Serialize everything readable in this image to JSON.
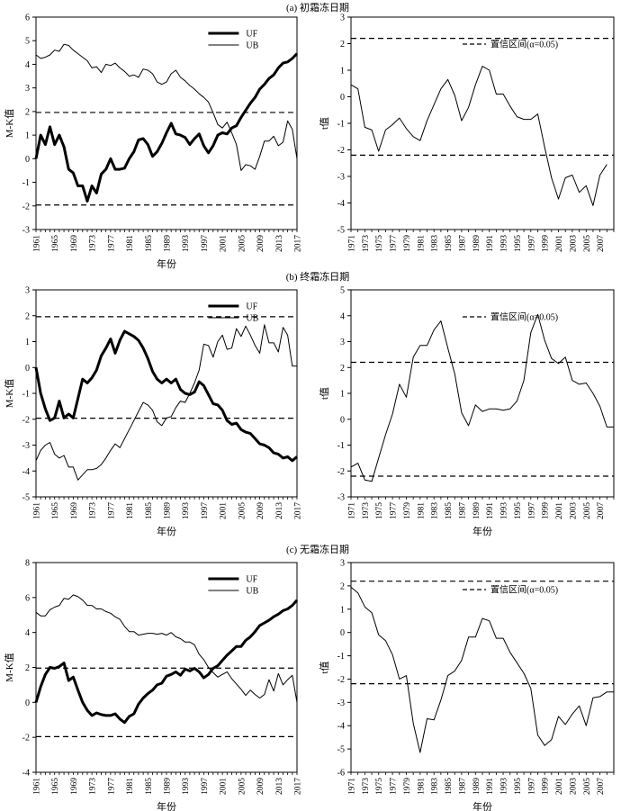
{
  "figure": {
    "background": "#ffffff",
    "ink": "#000000"
  },
  "chart_data": [
    {
      "id": "a-mk",
      "panel": "a",
      "type": "line",
      "title": "(a) 初霜冻日期",
      "xlabel": "年份",
      "ylabel": "M-K值",
      "xlim": [
        1961,
        2017
      ],
      "ylim": [
        -3,
        6
      ],
      "xticks": [
        1961,
        1965,
        1969,
        1973,
        1977,
        1981,
        1985,
        1989,
        1993,
        1997,
        2001,
        2005,
        2009,
        2013,
        2017
      ],
      "yticks": [
        -3,
        -2,
        -1,
        0,
        1,
        2,
        3,
        4,
        5,
        6
      ],
      "grid": false,
      "legend": {
        "position": "top-center"
      },
      "hlines": [
        1.96,
        -1.96
      ],
      "x": [
        1961,
        1962,
        1963,
        1964,
        1965,
        1966,
        1967,
        1968,
        1969,
        1970,
        1971,
        1972,
        1973,
        1974,
        1975,
        1976,
        1977,
        1978,
        1979,
        1980,
        1981,
        1982,
        1983,
        1984,
        1985,
        1986,
        1987,
        1988,
        1989,
        1990,
        1991,
        1992,
        1993,
        1994,
        1995,
        1996,
        1997,
        1998,
        1999,
        2000,
        2001,
        2002,
        2003,
        2004,
        2005,
        2006,
        2007,
        2008,
        2009,
        2010,
        2011,
        2012,
        2013,
        2014,
        2015,
        2016,
        2017
      ],
      "series": [
        {
          "name": "UF",
          "style": "thick",
          "values": [
            0,
            1,
            0.6,
            1.35,
            0.6,
            1,
            0.5,
            -0.45,
            -0.6,
            -1.15,
            -1.15,
            -1.8,
            -1.15,
            -1.45,
            -0.65,
            -0.45,
            0,
            -0.45,
            -0.45,
            -0.4,
            0,
            0.3,
            0.8,
            0.85,
            0.6,
            0.1,
            0.3,
            0.65,
            1.1,
            1.5,
            1.05,
            1,
            0.9,
            0.6,
            0.85,
            1.05,
            0.55,
            0.25,
            0.55,
            1,
            1.1,
            1.05,
            1.3,
            1.4,
            1.75,
            2.05,
            2.35,
            2.6,
            2.95,
            3.15,
            3.4,
            3.55,
            3.85,
            4.05,
            4.1,
            4.25,
            4.45
          ]
        },
        {
          "name": "UB",
          "style": "thin",
          "values": [
            4.4,
            4.25,
            4.3,
            4.4,
            4.6,
            4.55,
            4.85,
            4.8,
            4.6,
            4.45,
            4.3,
            4.15,
            3.85,
            3.9,
            3.65,
            4,
            3.95,
            4.05,
            3.85,
            3.7,
            3.5,
            3.55,
            3.45,
            3.8,
            3.75,
            3.6,
            3.25,
            3.15,
            3.25,
            3.6,
            3.75,
            3.45,
            3.3,
            3.1,
            2.95,
            2.75,
            2.6,
            2.4,
            1.95,
            1.45,
            1.3,
            1.55,
            1.1,
            0.6,
            -0.5,
            -0.25,
            -0.3,
            -0.45,
            0.1,
            0.75,
            0.75,
            0.95,
            0.55,
            0.7,
            1.6,
            1.25,
            0
          ]
        }
      ]
    },
    {
      "id": "a-t",
      "panel": "a",
      "type": "line",
      "xlabel": "",
      "ylabel": "t值",
      "xlim": [
        1971,
        2009
      ],
      "ylim": [
        -5,
        3
      ],
      "xticks": [
        1971,
        1973,
        1975,
        1977,
        1979,
        1981,
        1983,
        1985,
        1987,
        1989,
        1991,
        1993,
        1995,
        1997,
        1999,
        2001,
        2003,
        2005,
        2007
      ],
      "yticks": [
        -5,
        -4,
        -3,
        -2,
        -1,
        0,
        1,
        2,
        3
      ],
      "grid": false,
      "legend": {
        "position": "top-right",
        "label": "置信区间(α=0.05)"
      },
      "hlines": [
        2.2,
        -2.2
      ],
      "x": [
        1971,
        1972,
        1973,
        1974,
        1975,
        1976,
        1977,
        1978,
        1979,
        1980,
        1981,
        1982,
        1983,
        1984,
        1985,
        1986,
        1987,
        1988,
        1989,
        1990,
        1991,
        1992,
        1993,
        1994,
        1995,
        1996,
        1997,
        1998,
        1999,
        2000,
        2001,
        2002,
        2003,
        2004,
        2005,
        2006,
        2007,
        2008
      ],
      "series": [
        {
          "name": "t",
          "style": "thin",
          "values": [
            0.45,
            0.3,
            -1.15,
            -1.25,
            -2.05,
            -1.25,
            -1.05,
            -0.8,
            -1.2,
            -1.5,
            -1.65,
            -0.9,
            -0.3,
            0.3,
            0.65,
            0.05,
            -0.9,
            -0.4,
            0.45,
            1.15,
            1,
            0.1,
            0.1,
            -0.35,
            -0.75,
            -0.85,
            -0.85,
            -0.65,
            -1.9,
            -3.05,
            -3.85,
            -3.05,
            -2.95,
            -3.6,
            -3.35,
            -4.1,
            -2.95,
            -2.55
          ]
        }
      ]
    },
    {
      "id": "b-mk",
      "panel": "b",
      "type": "line",
      "title": "(b) 终霜冻日期",
      "xlabel": "年份",
      "ylabel": "M-K值",
      "xlim": [
        1961,
        2017
      ],
      "ylim": [
        -5,
        3
      ],
      "xticks": [
        1961,
        1965,
        1969,
        1973,
        1977,
        1981,
        1985,
        1989,
        1993,
        1997,
        2001,
        2005,
        2009,
        2013,
        2017
      ],
      "yticks": [
        -5,
        -4,
        -3,
        -2,
        -1,
        0,
        1,
        2,
        3
      ],
      "grid": false,
      "legend": {
        "position": "top-center"
      },
      "hlines": [
        1.96,
        -1.96
      ],
      "x": [
        1961,
        1962,
        1963,
        1964,
        1965,
        1966,
        1967,
        1968,
        1969,
        1970,
        1971,
        1972,
        1973,
        1974,
        1975,
        1976,
        1977,
        1978,
        1979,
        1980,
        1981,
        1982,
        1983,
        1984,
        1985,
        1986,
        1987,
        1988,
        1989,
        1990,
        1991,
        1992,
        1993,
        1994,
        1995,
        1996,
        1997,
        1998,
        1999,
        2000,
        2001,
        2002,
        2003,
        2004,
        2005,
        2006,
        2007,
        2008,
        2009,
        2010,
        2011,
        2012,
        2013,
        2014,
        2015,
        2016,
        2017
      ],
      "series": [
        {
          "name": "UF",
          "style": "thick",
          "values": [
            0,
            -1,
            -1.6,
            -2.05,
            -1.95,
            -1.3,
            -1.95,
            -1.8,
            -1.95,
            -1.2,
            -0.45,
            -0.6,
            -0.4,
            -0.1,
            0.45,
            0.75,
            1.1,
            0.55,
            1.05,
            1.4,
            1.3,
            1.2,
            1.05,
            0.75,
            0.35,
            -0.15,
            -0.45,
            -0.6,
            -0.45,
            -0.6,
            -0.45,
            -0.85,
            -1,
            -1.05,
            -0.95,
            -0.55,
            -0.7,
            -1.05,
            -1.4,
            -1.45,
            -1.65,
            -2.05,
            -2.2,
            -2.15,
            -2.4,
            -2.5,
            -2.55,
            -2.75,
            -2.95,
            -3,
            -3.1,
            -3.3,
            -3.35,
            -3.5,
            -3.45,
            -3.6,
            -3.45
          ]
        },
        {
          "name": "UB",
          "style": "thin",
          "values": [
            -3.6,
            -3.2,
            -3,
            -2.9,
            -3.35,
            -3.5,
            -3.4,
            -3.85,
            -3.85,
            -4.35,
            -4.15,
            -3.95,
            -3.95,
            -3.9,
            -3.75,
            -3.5,
            -3.2,
            -2.95,
            -3.1,
            -2.75,
            -2.4,
            -2.05,
            -1.7,
            -1.35,
            -1.45,
            -1.65,
            -2.1,
            -2.25,
            -1.95,
            -1.9,
            -1.55,
            -1.3,
            -1.35,
            -1,
            -0.6,
            -0.1,
            0.9,
            0.85,
            0.4,
            1,
            1.25,
            0.7,
            0.75,
            1.5,
            1.2,
            1.6,
            1.25,
            0.85,
            0.55,
            1.65,
            0.95,
            0.95,
            0.6,
            1.55,
            1.25,
            0.05,
            0.05
          ]
        }
      ]
    },
    {
      "id": "b-t",
      "panel": "b",
      "type": "line",
      "xlabel": "年份",
      "ylabel": "t值",
      "xlim": [
        1971,
        2009
      ],
      "ylim": [
        -3,
        5
      ],
      "xticks": [
        1971,
        1973,
        1975,
        1977,
        1979,
        1981,
        1983,
        1985,
        1987,
        1989,
        1991,
        1993,
        1995,
        1997,
        1999,
        2001,
        2003,
        2005,
        2007
      ],
      "yticks": [
        -3,
        -2,
        -1,
        0,
        1,
        2,
        3,
        4,
        5
      ],
      "grid": false,
      "legend": {
        "position": "top-right",
        "label": "置信区间(α=0.05)"
      },
      "hlines": [
        2.2,
        -2.2
      ],
      "x": [
        1971,
        1972,
        1973,
        1974,
        1975,
        1976,
        1977,
        1978,
        1979,
        1980,
        1981,
        1982,
        1983,
        1984,
        1985,
        1986,
        1987,
        1988,
        1989,
        1990,
        1991,
        1992,
        1993,
        1994,
        1995,
        1996,
        1997,
        1998,
        1999,
        2000,
        2001,
        2002,
        2003,
        2004,
        2005,
        2006,
        2007,
        2008,
        2009
      ],
      "series": [
        {
          "name": "t",
          "style": "thin",
          "values": [
            -1.85,
            -1.7,
            -2.35,
            -2.4,
            -1.5,
            -0.6,
            0.2,
            1.35,
            0.85,
            2.4,
            2.85,
            2.85,
            3.45,
            3.8,
            2.75,
            1.75,
            0.25,
            -0.25,
            0.55,
            0.3,
            0.4,
            0.4,
            0.35,
            0.4,
            0.7,
            1.5,
            3.35,
            4.05,
            3.05,
            2.35,
            2.15,
            2.4,
            1.5,
            1.35,
            1.4,
            1,
            0.5,
            -0.3,
            -0.3
          ]
        }
      ]
    },
    {
      "id": "c-mk",
      "panel": "c",
      "type": "line",
      "title": "(c) 无霜冻日期",
      "xlabel": "年份",
      "ylabel": "M-K值",
      "xlim": [
        1961,
        2017
      ],
      "ylim": [
        -4,
        8
      ],
      "xticks": [
        1961,
        1965,
        1969,
        1973,
        1977,
        1981,
        1985,
        1989,
        1993,
        1997,
        2001,
        2005,
        2009,
        2013,
        2017
      ],
      "yticks": [
        -4,
        -2,
        0,
        2,
        4,
        6,
        8
      ],
      "grid": false,
      "legend": {
        "position": "top-center"
      },
      "hlines": [
        1.96,
        -1.96
      ],
      "x": [
        1961,
        1962,
        1963,
        1964,
        1965,
        1966,
        1967,
        1968,
        1969,
        1970,
        1971,
        1972,
        1973,
        1974,
        1975,
        1976,
        1977,
        1978,
        1979,
        1980,
        1981,
        1982,
        1983,
        1984,
        1985,
        1986,
        1987,
        1988,
        1989,
        1990,
        1991,
        1992,
        1993,
        1994,
        1995,
        1996,
        1997,
        1998,
        1999,
        2000,
        2001,
        2002,
        2003,
        2004,
        2005,
        2006,
        2007,
        2008,
        2009,
        2010,
        2011,
        2012,
        2013,
        2014,
        2015,
        2016,
        2017
      ],
      "series": [
        {
          "name": "UF",
          "style": "thick",
          "values": [
            0,
            0.9,
            1.6,
            2,
            1.95,
            2.05,
            2.25,
            1.25,
            1.45,
            0.7,
            0,
            -0.45,
            -0.75,
            -0.6,
            -0.7,
            -0.75,
            -0.75,
            -0.65,
            -0.95,
            -1.15,
            -0.8,
            -0.65,
            -0.1,
            0.25,
            0.5,
            0.7,
            1,
            1.1,
            1.5,
            1.6,
            1.75,
            1.55,
            1.9,
            1.8,
            1.95,
            1.75,
            1.4,
            1.6,
            1.95,
            2.1,
            2.4,
            2.7,
            2.95,
            3.2,
            3.2,
            3.55,
            3.75,
            4.05,
            4.4,
            4.55,
            4.7,
            4.9,
            5.05,
            5.25,
            5.35,
            5.55,
            5.85
          ]
        },
        {
          "name": "UB",
          "style": "thin",
          "values": [
            5.15,
            4.95,
            4.95,
            5.3,
            5.45,
            5.55,
            5.95,
            5.9,
            6.15,
            6.05,
            5.85,
            5.55,
            5.55,
            5.35,
            5.35,
            5.2,
            5.1,
            4.9,
            4.75,
            4.35,
            4.05,
            4.05,
            3.85,
            3.9,
            3.95,
            3.95,
            3.9,
            3.95,
            3.85,
            4,
            3.75,
            3.65,
            3.45,
            3.45,
            3.3,
            2.75,
            2.45,
            2,
            1.7,
            1.45,
            1.6,
            1.75,
            1.35,
            1.05,
            0.75,
            0.4,
            0.7,
            0.45,
            0.25,
            0.45,
            1.3,
            0.65,
            1.65,
            1,
            1.3,
            1.55,
            0
          ]
        }
      ]
    },
    {
      "id": "c-t",
      "panel": "c",
      "type": "line",
      "xlabel": "年份",
      "ylabel": "t值",
      "xlim": [
        1971,
        2009
      ],
      "ylim": [
        -6,
        3
      ],
      "xticks": [
        1971,
        1973,
        1975,
        1977,
        1979,
        1981,
        1983,
        1985,
        1987,
        1989,
        1991,
        1993,
        1995,
        1997,
        1999,
        2001,
        2003,
        2005,
        2007
      ],
      "yticks": [
        -6,
        -5,
        -4,
        -3,
        -2,
        -1,
        0,
        1,
        2,
        3
      ],
      "grid": false,
      "legend": {
        "position": "top-right",
        "label": "置信区间(α=0.05)"
      },
      "hlines": [
        2.2,
        -2.2
      ],
      "x": [
        1971,
        1972,
        1973,
        1974,
        1975,
        1976,
        1977,
        1978,
        1979,
        1980,
        1981,
        1982,
        1983,
        1984,
        1985,
        1986,
        1987,
        1988,
        1989,
        1990,
        1991,
        1992,
        1993,
        1994,
        1995,
        1996,
        1997,
        1998,
        1999,
        2000,
        2001,
        2002,
        2003,
        2004,
        2005,
        2006,
        2007,
        2008,
        2009
      ],
      "series": [
        {
          "name": "t",
          "style": "thin",
          "values": [
            1.95,
            1.7,
            1.1,
            0.85,
            -0.1,
            -0.35,
            -0.95,
            -2,
            -1.85,
            -3.9,
            -5.15,
            -3.7,
            -3.75,
            -2.9,
            -1.85,
            -1.65,
            -1.2,
            -0.2,
            -0.2,
            0.6,
            0.5,
            -0.25,
            -0.25,
            -0.85,
            -1.3,
            -1.75,
            -2.4,
            -4.4,
            -4.85,
            -4.6,
            -3.6,
            -3.95,
            -3.5,
            -3.15,
            -4,
            -2.8,
            -2.75,
            -2.55,
            -2.55
          ]
        }
      ]
    }
  ]
}
